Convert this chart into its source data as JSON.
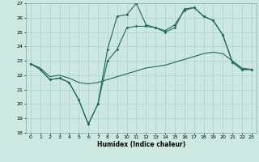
{
  "bg_color": "#cce8e0",
  "grid_color": "#a8d4cc",
  "line_color": "#1a6b5a",
  "xlabel": "Humidex (Indice chaleur)",
  "xlim": [
    -0.5,
    23.5
  ],
  "ylim": [
    18,
    27
  ],
  "yticks": [
    18,
    19,
    20,
    21,
    22,
    23,
    24,
    25,
    26,
    27
  ],
  "xticks": [
    0,
    1,
    2,
    3,
    4,
    5,
    6,
    7,
    8,
    9,
    10,
    11,
    12,
    13,
    14,
    15,
    16,
    17,
    18,
    19,
    20,
    21,
    22,
    23
  ],
  "line1_x": [
    0,
    1,
    2,
    3,
    4,
    5,
    6,
    7,
    8,
    9,
    10,
    11,
    12,
    13,
    14,
    15,
    16,
    17,
    18,
    19,
    20,
    21,
    22,
    23
  ],
  "line1_y": [
    22.8,
    22.4,
    21.7,
    21.8,
    21.5,
    20.3,
    18.6,
    20.0,
    23.0,
    23.8,
    25.3,
    25.4,
    25.4,
    25.3,
    25.1,
    25.5,
    26.5,
    26.7,
    26.1,
    25.8,
    24.8,
    22.9,
    22.4,
    22.4
  ],
  "line2_x": [
    0,
    1,
    2,
    3,
    4,
    5,
    6,
    7,
    8,
    9,
    10,
    11,
    12,
    13,
    14,
    15,
    16,
    17,
    18,
    19,
    20,
    21,
    22,
    23
  ],
  "line2_y": [
    22.8,
    22.5,
    21.9,
    22.0,
    21.8,
    21.5,
    21.4,
    21.5,
    21.7,
    21.9,
    22.1,
    22.3,
    22.5,
    22.6,
    22.7,
    22.9,
    23.1,
    23.3,
    23.5,
    23.6,
    23.5,
    23.0,
    22.5,
    22.4
  ],
  "line3_x": [
    0,
    1,
    2,
    3,
    4,
    5,
    6,
    7,
    8,
    9,
    10,
    11,
    12,
    13,
    14,
    15,
    16,
    17,
    18,
    19,
    20,
    21,
    22,
    23
  ],
  "line3_y": [
    22.8,
    22.4,
    21.7,
    21.8,
    21.5,
    20.3,
    18.6,
    20.0,
    23.8,
    26.1,
    26.2,
    27.0,
    25.5,
    25.3,
    25.0,
    25.3,
    26.6,
    26.7,
    26.1,
    25.8,
    24.8,
    22.9,
    22.4,
    22.4
  ]
}
